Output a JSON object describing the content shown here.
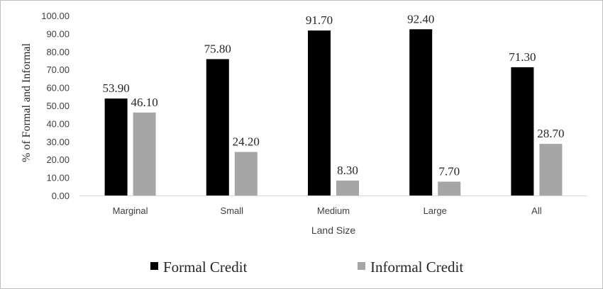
{
  "chart_data": {
    "type": "bar",
    "categories": [
      "Marginal",
      "Small",
      "Medium",
      "Large",
      "All"
    ],
    "series": [
      {
        "name": "Formal Credit",
        "values": [
          53.9,
          75.8,
          91.7,
          92.4,
          71.3
        ],
        "labels": [
          "53.90",
          "75.80",
          "91.70",
          "92.40",
          "71.30"
        ],
        "color": "#000000"
      },
      {
        "name": "Informal Credit",
        "values": [
          46.1,
          24.2,
          8.3,
          7.7,
          28.7
        ],
        "labels": [
          "46.10",
          "24.20",
          "8.30",
          "7.70",
          "28.70"
        ],
        "color": "#a6a6a6"
      }
    ],
    "xlabel": "Land Size",
    "ylabel": "% of Formal and Informal",
    "ylim": [
      0,
      100
    ],
    "yticks": [
      "0.00",
      "10.00",
      "20.00",
      "30.00",
      "40.00",
      "50.00",
      "60.00",
      "70.00",
      "80.00",
      "90.00",
      "100.00"
    ],
    "grid": false,
    "legend": "bottom"
  }
}
